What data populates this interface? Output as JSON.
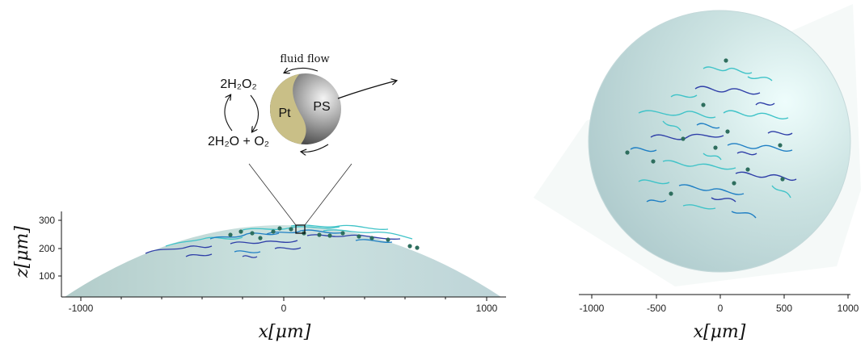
{
  "left_panel": {
    "ylabel": "z[μm]",
    "xlabel": "x[μm]",
    "y_ticks": [
      "300",
      "200",
      "100"
    ],
    "x_ticks": [
      "-1000",
      "0",
      "1000"
    ]
  },
  "right_panel": {
    "xlabel": "x[μm]",
    "x_ticks": [
      "-1000",
      "-500",
      "0",
      "500",
      "1000"
    ]
  },
  "inset": {
    "flow_label": "fluid flow",
    "reactant": "2H₂O₂",
    "products": "2H₂O + O₂",
    "left_cap": "Pt",
    "right_cap": "PS"
  },
  "colors": {
    "drop_fill": "#b9d6d7",
    "pt_gold": "#c9bf87",
    "traj_dark": "#2f3fa8",
    "traj_mid": "#1f7fc4",
    "traj_light": "#3fc3c8",
    "particle": "#2e6e5e"
  }
}
